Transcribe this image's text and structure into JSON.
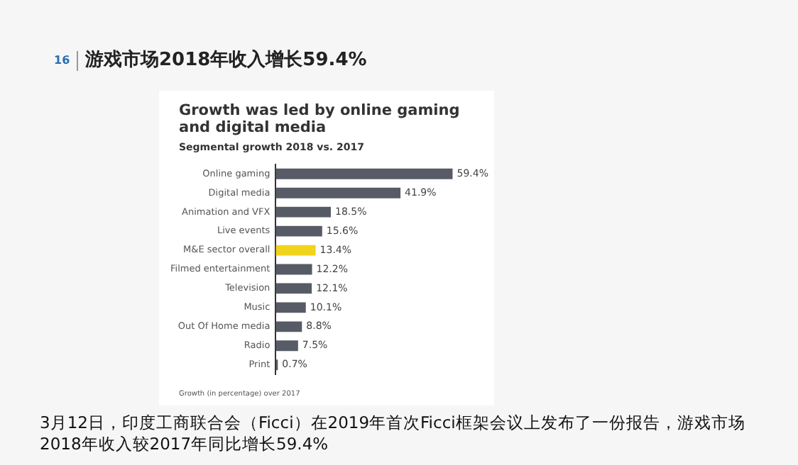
{
  "chart_data": {
    "type": "bar",
    "orientation": "horizontal",
    "title": "Growth was led by online gaming and digital media",
    "subtitle": "Segmental growth 2018 vs. 2017",
    "categories": [
      "Online gaming",
      "Digital media",
      "Animation and VFX",
      "Live events",
      "M&E sector overall",
      "Filmed entertainment",
      "Television",
      "Music",
      "Out Of Home media",
      "Radio",
      "Print"
    ],
    "values": [
      59.4,
      41.9,
      18.5,
      15.6,
      13.4,
      12.2,
      12.1,
      10.1,
      8.8,
      7.5,
      0.7
    ],
    "colors": [
      "#575b66",
      "#575b66",
      "#575b66",
      "#575b66",
      "#f2d31b",
      "#575b66",
      "#575b66",
      "#575b66",
      "#575b66",
      "#575b66",
      "#575b66"
    ],
    "value_labels": [
      "59.4%",
      "41.9%",
      "18.5%",
      "15.6%",
      "13.4%",
      "12.2%",
      "12.1%",
      "10.1%",
      "8.8%",
      "7.5%",
      "0.7%"
    ],
    "legend": false,
    "annotations": [
      "16",
      "游戏市场2018年收入增长59.4%",
      "Growth (in percentage) over 2017",
      "3月12日，印度工商联合会（Ficci）在2019年首次Ficci框架会议上发布了一份报告，游戏市场2018年收入较2017年同比增长59.4%"
    ]
  }
}
